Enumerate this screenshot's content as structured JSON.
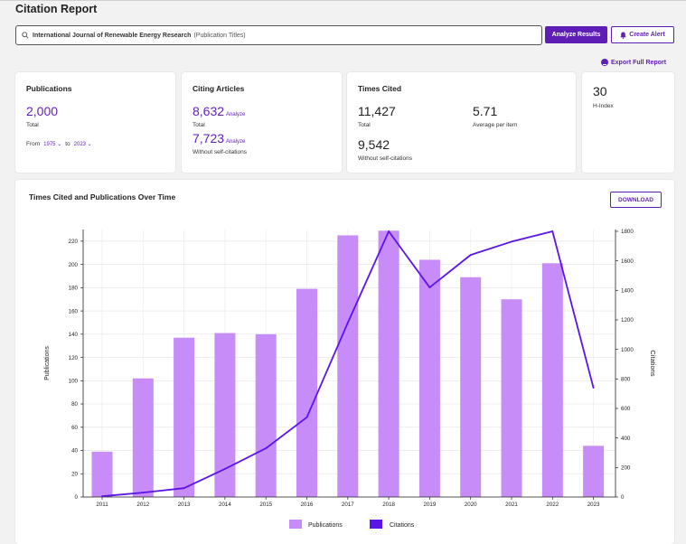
{
  "page": {
    "title": "Citation Report",
    "search_query": "International Journal of Renewable Energy Research",
    "search_type": "(Publication Titles)",
    "analyze_results_label": "Analyze Results",
    "create_alert_label": "Create Alert",
    "export_label": "Export Full Report"
  },
  "publications": {
    "heading": "Publications",
    "value": "2,000",
    "sub": "Total",
    "from_label": "From",
    "from_year": "1975",
    "to_label": "to",
    "to_year": "2023"
  },
  "citing": {
    "heading": "Citing Articles",
    "value1": "8,632",
    "analyze1": "Analyze",
    "sub1": "Total",
    "value2": "7,723",
    "analyze2": "Analyze",
    "sub2": "Without self-citations"
  },
  "times_cited": {
    "heading": "Times Cited",
    "value1": "11,427",
    "sub1": "Total",
    "avg": "5.71",
    "avg_sub": "Average per item",
    "value2": "9,542",
    "sub2": "Without self-citations"
  },
  "hindex": {
    "value": "30",
    "label": "H-Index"
  },
  "chart_title": "Times Cited and Publications Over Time",
  "download_label": "DOWNLOAD",
  "colors": {
    "accent": "#5e1eb6",
    "bar": "#c78cf7",
    "line": "#5b14e6"
  },
  "chart_data": {
    "type": "bar",
    "categories": [
      "2011",
      "2012",
      "2013",
      "2014",
      "2015",
      "2016",
      "2017",
      "2018",
      "2019",
      "2020",
      "2021",
      "2022",
      "2023"
    ],
    "series": [
      {
        "name": "Publications",
        "axis": "left",
        "type": "bar",
        "values": [
          39,
          102,
          137,
          141,
          140,
          179,
          225,
          229,
          204,
          189,
          170,
          201,
          44
        ]
      },
      {
        "name": "Citations",
        "axis": "right",
        "type": "line",
        "values": [
          5,
          30,
          60,
          190,
          330,
          540,
          1180,
          1800,
          1420,
          1640,
          1730,
          1800,
          740
        ]
      }
    ],
    "ylabel": "Publications",
    "y2label": "Citations",
    "ylim": [
      0,
      230
    ],
    "yticks": [
      0,
      20,
      40,
      60,
      80,
      100,
      120,
      140,
      160,
      180,
      200,
      220
    ],
    "y2lim": [
      0,
      1800
    ],
    "y2ticks": [
      0,
      200,
      400,
      600,
      800,
      1000,
      1200,
      1400,
      1600,
      1800
    ],
    "grid": true,
    "legend": "bottom-center"
  }
}
